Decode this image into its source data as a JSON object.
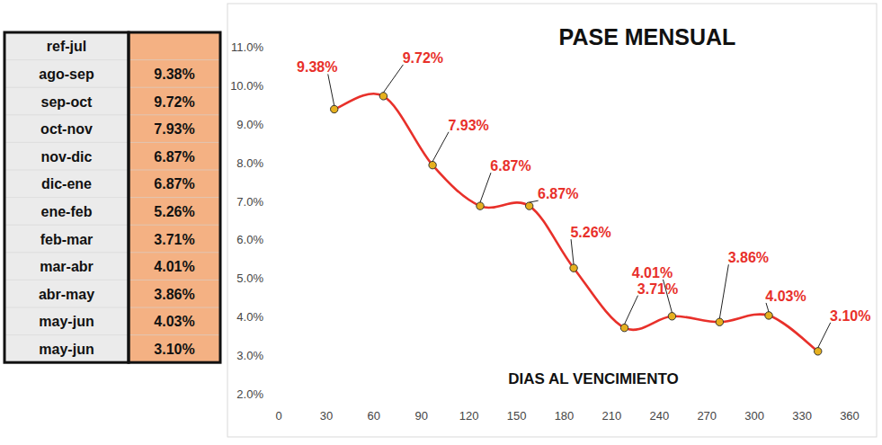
{
  "table": {
    "header": "ref-jul",
    "rows": [
      [
        "ago-sep",
        "9.38%"
      ],
      [
        "sep-oct",
        "9.72%"
      ],
      [
        "oct-nov",
        "7.93%"
      ],
      [
        "nov-dic",
        "6.87%"
      ],
      [
        "dic-ene",
        "6.87%"
      ],
      [
        "ene-feb",
        "5.26%"
      ],
      [
        "feb-mar",
        "3.71%"
      ],
      [
        "mar-abr",
        "4.01%"
      ],
      [
        "abr-may",
        "3.86%"
      ],
      [
        "may-jun",
        "4.03%"
      ],
      [
        "may-jun",
        "3.10%"
      ]
    ]
  },
  "chart_data": {
    "type": "line",
    "title": "PASE MENSUAL",
    "x_label": "DIAS AL VENCIMIENTO",
    "x": [
      35,
      66,
      97,
      127,
      158,
      186,
      218,
      248,
      278,
      309,
      340
    ],
    "values": [
      9.38,
      9.72,
      7.93,
      6.87,
      6.87,
      5.26,
      3.71,
      4.01,
      3.86,
      4.03,
      3.1
    ],
    "value_labels": [
      "9.38%",
      "9.72%",
      "7.93%",
      "6.87%",
      "6.87%",
      "5.26%",
      "3.71%",
      "4.01%",
      "3.86%",
      "4.03%",
      "3.10%"
    ],
    "color": "#e8302a",
    "marker": "circle",
    "line_style": "smooth",
    "data_labels": true,
    "grid": false,
    "xlim": [
      0,
      360
    ],
    "xticks": [
      0,
      30,
      60,
      90,
      120,
      150,
      180,
      210,
      240,
      270,
      300,
      330,
      360
    ],
    "ylim": [
      2,
      11
    ],
    "yticks": [
      {
        "value": 2,
        "label": "2.0%"
      },
      {
        "value": 3,
        "label": "3.0%"
      },
      {
        "value": 4,
        "label": "4.0%"
      },
      {
        "value": 5,
        "label": "5.0%"
      },
      {
        "value": 6,
        "label": "6.0%"
      },
      {
        "value": 7,
        "label": "7.0%"
      },
      {
        "value": 8,
        "label": "8.0%"
      },
      {
        "value": 9,
        "label": "9.0%"
      },
      {
        "value": 10,
        "label": "10.0%"
      },
      {
        "value": 11,
        "label": "11.0%"
      }
    ]
  }
}
